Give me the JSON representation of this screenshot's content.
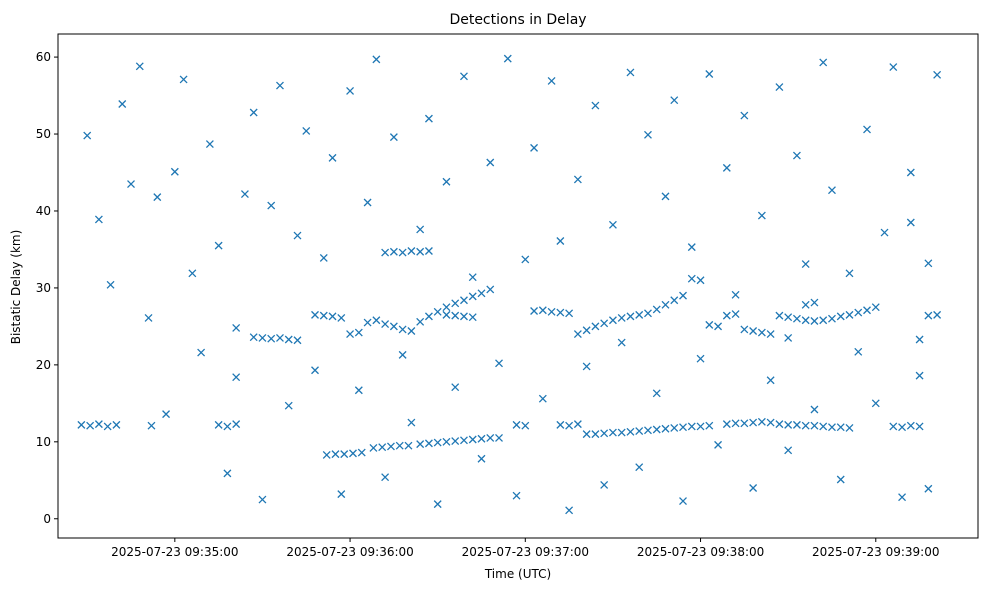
{
  "chart_data": {
    "type": "scatter",
    "title": "Detections in Delay",
    "xlabel": "Time (UTC)",
    "ylabel": "Bistatic Delay (km)",
    "x_unit": "time",
    "xlim": [
      "2025-07-23 09:34:20",
      "2025-07-23 09:39:35"
    ],
    "ylim": [
      -2.5,
      63
    ],
    "x_ticks": [
      "2025-07-23 09:35:00",
      "2025-07-23 09:36:00",
      "2025-07-23 09:37:00",
      "2025-07-23 09:38:00",
      "2025-07-23 09:39:00"
    ],
    "y_ticks": [
      "0",
      "10",
      "20",
      "30",
      "40",
      "50",
      "60"
    ],
    "marker": "x",
    "color": "#1f77b4",
    "grid": false,
    "series": [
      {
        "points": [
          [
            "2025-07-23 09:34:28",
            12.2
          ],
          [
            "2025-07-23 09:34:31",
            12.1
          ],
          [
            "2025-07-23 09:34:34",
            12.3
          ],
          [
            "2025-07-23 09:34:37",
            12.0
          ],
          [
            "2025-07-23 09:34:40",
            12.2
          ],
          [
            "2025-07-23 09:34:52",
            12.1
          ],
          [
            "2025-07-23 09:35:15",
            12.2
          ],
          [
            "2025-07-23 09:35:18",
            12.0
          ],
          [
            "2025-07-23 09:35:21",
            12.3
          ],
          [
            "2025-07-23 09:35:52",
            8.3
          ],
          [
            "2025-07-23 09:35:55",
            8.4
          ],
          [
            "2025-07-23 09:35:58",
            8.4
          ],
          [
            "2025-07-23 09:36:01",
            8.5
          ],
          [
            "2025-07-23 09:36:04",
            8.6
          ],
          [
            "2025-07-23 09:36:08",
            9.2
          ],
          [
            "2025-07-23 09:36:11",
            9.3
          ],
          [
            "2025-07-23 09:36:14",
            9.4
          ],
          [
            "2025-07-23 09:36:17",
            9.5
          ],
          [
            "2025-07-23 09:36:20",
            9.5
          ],
          [
            "2025-07-23 09:36:24",
            9.7
          ],
          [
            "2025-07-23 09:36:27",
            9.8
          ],
          [
            "2025-07-23 09:36:30",
            9.9
          ],
          [
            "2025-07-23 09:36:33",
            10.0
          ],
          [
            "2025-07-23 09:36:36",
            10.1
          ],
          [
            "2025-07-23 09:36:39",
            10.2
          ],
          [
            "2025-07-23 09:36:42",
            10.3
          ],
          [
            "2025-07-23 09:36:45",
            10.4
          ],
          [
            "2025-07-23 09:36:48",
            10.5
          ],
          [
            "2025-07-23 09:36:51",
            10.5
          ],
          [
            "2025-07-23 09:36:57",
            12.2
          ],
          [
            "2025-07-23 09:37:00",
            12.1
          ],
          [
            "2025-07-23 09:37:12",
            12.2
          ],
          [
            "2025-07-23 09:37:15",
            12.1
          ],
          [
            "2025-07-23 09:37:18",
            12.3
          ],
          [
            "2025-07-23 09:37:21",
            11.0
          ],
          [
            "2025-07-23 09:37:24",
            11.0
          ],
          [
            "2025-07-23 09:37:27",
            11.1
          ],
          [
            "2025-07-23 09:37:30",
            11.2
          ],
          [
            "2025-07-23 09:37:33",
            11.2
          ],
          [
            "2025-07-23 09:37:36",
            11.3
          ],
          [
            "2025-07-23 09:37:39",
            11.4
          ],
          [
            "2025-07-23 09:37:42",
            11.5
          ],
          [
            "2025-07-23 09:37:45",
            11.6
          ],
          [
            "2025-07-23 09:37:48",
            11.7
          ],
          [
            "2025-07-23 09:37:51",
            11.8
          ],
          [
            "2025-07-23 09:37:54",
            11.9
          ],
          [
            "2025-07-23 09:37:57",
            12.0
          ],
          [
            "2025-07-23 09:38:00",
            12.0
          ],
          [
            "2025-07-23 09:38:03",
            12.1
          ],
          [
            "2025-07-23 09:38:09",
            12.3
          ],
          [
            "2025-07-23 09:38:12",
            12.4
          ],
          [
            "2025-07-23 09:38:15",
            12.4
          ],
          [
            "2025-07-23 09:38:18",
            12.5
          ],
          [
            "2025-07-23 09:38:21",
            12.6
          ],
          [
            "2025-07-23 09:38:24",
            12.5
          ],
          [
            "2025-07-23 09:38:27",
            12.3
          ],
          [
            "2025-07-23 09:38:30",
            12.2
          ],
          [
            "2025-07-23 09:38:33",
            12.2
          ],
          [
            "2025-07-23 09:38:36",
            12.1
          ],
          [
            "2025-07-23 09:38:39",
            12.1
          ],
          [
            "2025-07-23 09:38:42",
            12.0
          ],
          [
            "2025-07-23 09:38:45",
            11.9
          ],
          [
            "2025-07-23 09:38:48",
            11.9
          ],
          [
            "2025-07-23 09:38:51",
            11.8
          ],
          [
            "2025-07-23 09:39:06",
            12.0
          ],
          [
            "2025-07-23 09:39:09",
            11.9
          ],
          [
            "2025-07-23 09:39:12",
            12.1
          ],
          [
            "2025-07-23 09:39:15",
            12.0
          ],
          [
            "2025-07-23 09:35:21",
            24.8
          ],
          [
            "2025-07-23 09:35:27",
            23.6
          ],
          [
            "2025-07-23 09:35:30",
            23.5
          ],
          [
            "2025-07-23 09:35:33",
            23.4
          ],
          [
            "2025-07-23 09:35:36",
            23.5
          ],
          [
            "2025-07-23 09:35:39",
            23.3
          ],
          [
            "2025-07-23 09:35:42",
            23.2
          ],
          [
            "2025-07-23 09:35:48",
            26.5
          ],
          [
            "2025-07-23 09:35:51",
            26.4
          ],
          [
            "2025-07-23 09:35:54",
            26.3
          ],
          [
            "2025-07-23 09:35:57",
            26.1
          ],
          [
            "2025-07-23 09:36:00",
            24.0
          ],
          [
            "2025-07-23 09:36:03",
            24.2
          ],
          [
            "2025-07-23 09:36:06",
            25.5
          ],
          [
            "2025-07-23 09:36:09",
            25.8
          ],
          [
            "2025-07-23 09:36:12",
            25.3
          ],
          [
            "2025-07-23 09:36:15",
            25.0
          ],
          [
            "2025-07-23 09:36:18",
            24.6
          ],
          [
            "2025-07-23 09:36:21",
            24.4
          ],
          [
            "2025-07-23 09:36:24",
            25.6
          ],
          [
            "2025-07-23 09:36:27",
            26.3
          ],
          [
            "2025-07-23 09:36:30",
            26.9
          ],
          [
            "2025-07-23 09:36:33",
            27.5
          ],
          [
            "2025-07-23 09:36:36",
            28.0
          ],
          [
            "2025-07-23 09:36:39",
            28.4
          ],
          [
            "2025-07-23 09:36:42",
            28.9
          ],
          [
            "2025-07-23 09:36:45",
            29.3
          ],
          [
            "2025-07-23 09:36:48",
            29.8
          ],
          [
            "2025-07-23 09:36:12",
            34.6
          ],
          [
            "2025-07-23 09:36:15",
            34.7
          ],
          [
            "2025-07-23 09:36:18",
            34.6
          ],
          [
            "2025-07-23 09:36:21",
            34.8
          ],
          [
            "2025-07-23 09:36:24",
            34.7
          ],
          [
            "2025-07-23 09:36:27",
            34.8
          ],
          [
            "2025-07-23 09:36:33",
            26.5
          ],
          [
            "2025-07-23 09:36:36",
            26.4
          ],
          [
            "2025-07-23 09:36:39",
            26.3
          ],
          [
            "2025-07-23 09:36:42",
            26.2
          ],
          [
            "2025-07-23 09:37:03",
            27.0
          ],
          [
            "2025-07-23 09:37:06",
            27.1
          ],
          [
            "2025-07-23 09:37:09",
            26.9
          ],
          [
            "2025-07-23 09:37:12",
            26.8
          ],
          [
            "2025-07-23 09:37:15",
            26.7
          ],
          [
            "2025-07-23 09:37:18",
            24.0
          ],
          [
            "2025-07-23 09:37:21",
            24.5
          ],
          [
            "2025-07-23 09:37:24",
            25.0
          ],
          [
            "2025-07-23 09:37:27",
            25.4
          ],
          [
            "2025-07-23 09:37:30",
            25.8
          ],
          [
            "2025-07-23 09:37:33",
            26.1
          ],
          [
            "2025-07-23 09:37:36",
            26.3
          ],
          [
            "2025-07-23 09:37:39",
            26.5
          ],
          [
            "2025-07-23 09:37:42",
            26.7
          ],
          [
            "2025-07-23 09:37:45",
            27.2
          ],
          [
            "2025-07-23 09:37:48",
            27.8
          ],
          [
            "2025-07-23 09:37:51",
            28.4
          ],
          [
            "2025-07-23 09:37:54",
            29.0
          ],
          [
            "2025-07-23 09:37:57",
            31.2
          ],
          [
            "2025-07-23 09:38:00",
            31.0
          ],
          [
            "2025-07-23 09:38:03",
            25.2
          ],
          [
            "2025-07-23 09:38:06",
            25.0
          ],
          [
            "2025-07-23 09:38:09",
            26.4
          ],
          [
            "2025-07-23 09:38:12",
            26.6
          ],
          [
            "2025-07-23 09:38:15",
            24.6
          ],
          [
            "2025-07-23 09:38:18",
            24.4
          ],
          [
            "2025-07-23 09:38:21",
            24.2
          ],
          [
            "2025-07-23 09:38:24",
            24.0
          ],
          [
            "2025-07-23 09:38:27",
            26.4
          ],
          [
            "2025-07-23 09:38:30",
            26.2
          ],
          [
            "2025-07-23 09:38:33",
            26.0
          ],
          [
            "2025-07-23 09:38:36",
            25.8
          ],
          [
            "2025-07-23 09:38:39",
            25.7
          ],
          [
            "2025-07-23 09:38:42",
            25.8
          ],
          [
            "2025-07-23 09:38:45",
            26.0
          ],
          [
            "2025-07-23 09:38:48",
            26.3
          ],
          [
            "2025-07-23 09:38:51",
            26.5
          ],
          [
            "2025-07-23 09:38:54",
            26.8
          ],
          [
            "2025-07-23 09:38:57",
            27.1
          ],
          [
            "2025-07-23 09:39:00",
            27.5
          ],
          [
            "2025-07-23 09:38:36",
            27.8
          ],
          [
            "2025-07-23 09:38:39",
            28.1
          ],
          [
            "2025-07-23 09:38:30",
            23.5
          ],
          [
            "2025-07-23 09:39:18",
            26.4
          ],
          [
            "2025-07-23 09:39:21",
            26.5
          ],
          [
            "2025-07-23 09:34:30",
            49.8
          ],
          [
            "2025-07-23 09:34:34",
            38.9
          ],
          [
            "2025-07-23 09:34:38",
            30.4
          ],
          [
            "2025-07-23 09:34:42",
            53.9
          ],
          [
            "2025-07-23 09:34:45",
            43.5
          ],
          [
            "2025-07-23 09:34:48",
            58.8
          ],
          [
            "2025-07-23 09:34:51",
            26.1
          ],
          [
            "2025-07-23 09:34:54",
            41.8
          ],
          [
            "2025-07-23 09:34:57",
            13.6
          ],
          [
            "2025-07-23 09:35:00",
            45.1
          ],
          [
            "2025-07-23 09:35:03",
            57.1
          ],
          [
            "2025-07-23 09:35:06",
            31.9
          ],
          [
            "2025-07-23 09:35:09",
            21.6
          ],
          [
            "2025-07-23 09:35:12",
            48.7
          ],
          [
            "2025-07-23 09:35:15",
            35.5
          ],
          [
            "2025-07-23 09:35:18",
            5.9
          ],
          [
            "2025-07-23 09:35:21",
            18.4
          ],
          [
            "2025-07-23 09:35:24",
            42.2
          ],
          [
            "2025-07-23 09:35:27",
            52.8
          ],
          [
            "2025-07-23 09:35:30",
            2.5
          ],
          [
            "2025-07-23 09:35:33",
            40.7
          ],
          [
            "2025-07-23 09:35:36",
            56.3
          ],
          [
            "2025-07-23 09:35:39",
            14.7
          ],
          [
            "2025-07-23 09:35:42",
            36.8
          ],
          [
            "2025-07-23 09:35:45",
            50.4
          ],
          [
            "2025-07-23 09:35:48",
            19.3
          ],
          [
            "2025-07-23 09:35:51",
            33.9
          ],
          [
            "2025-07-23 09:35:54",
            46.9
          ],
          [
            "2025-07-23 09:35:57",
            3.2
          ],
          [
            "2025-07-23 09:36:00",
            55.6
          ],
          [
            "2025-07-23 09:36:03",
            16.7
          ],
          [
            "2025-07-23 09:36:06",
            41.1
          ],
          [
            "2025-07-23 09:36:09",
            59.7
          ],
          [
            "2025-07-23 09:36:12",
            5.4
          ],
          [
            "2025-07-23 09:36:15",
            49.6
          ],
          [
            "2025-07-23 09:36:18",
            21.3
          ],
          [
            "2025-07-23 09:36:21",
            12.5
          ],
          [
            "2025-07-23 09:36:24",
            37.6
          ],
          [
            "2025-07-23 09:36:27",
            52.0
          ],
          [
            "2025-07-23 09:36:30",
            1.9
          ],
          [
            "2025-07-23 09:36:33",
            43.8
          ],
          [
            "2025-07-23 09:36:36",
            17.1
          ],
          [
            "2025-07-23 09:36:39",
            57.5
          ],
          [
            "2025-07-23 09:36:42",
            31.4
          ],
          [
            "2025-07-23 09:36:45",
            7.8
          ],
          [
            "2025-07-23 09:36:48",
            46.3
          ],
          [
            "2025-07-23 09:36:51",
            20.2
          ],
          [
            "2025-07-23 09:36:54",
            59.8
          ],
          [
            "2025-07-23 09:36:57",
            3.0
          ],
          [
            "2025-07-23 09:37:00",
            33.7
          ],
          [
            "2025-07-23 09:37:03",
            48.2
          ],
          [
            "2025-07-23 09:37:06",
            15.6
          ],
          [
            "2025-07-23 09:37:09",
            56.9
          ],
          [
            "2025-07-23 09:37:12",
            36.1
          ],
          [
            "2025-07-23 09:37:15",
            1.1
          ],
          [
            "2025-07-23 09:37:18",
            44.1
          ],
          [
            "2025-07-23 09:37:21",
            19.8
          ],
          [
            "2025-07-23 09:37:24",
            53.7
          ],
          [
            "2025-07-23 09:37:27",
            4.4
          ],
          [
            "2025-07-23 09:37:30",
            38.2
          ],
          [
            "2025-07-23 09:37:33",
            22.9
          ],
          [
            "2025-07-23 09:37:36",
            58.0
          ],
          [
            "2025-07-23 09:37:39",
            6.7
          ],
          [
            "2025-07-23 09:37:42",
            49.9
          ],
          [
            "2025-07-23 09:37:45",
            16.3
          ],
          [
            "2025-07-23 09:37:48",
            41.9
          ],
          [
            "2025-07-23 09:37:51",
            54.4
          ],
          [
            "2025-07-23 09:37:54",
            2.3
          ],
          [
            "2025-07-23 09:37:57",
            35.3
          ],
          [
            "2025-07-23 09:38:00",
            20.8
          ],
          [
            "2025-07-23 09:38:03",
            57.8
          ],
          [
            "2025-07-23 09:38:06",
            9.6
          ],
          [
            "2025-07-23 09:38:09",
            45.6
          ],
          [
            "2025-07-23 09:38:12",
            29.1
          ],
          [
            "2025-07-23 09:38:15",
            52.4
          ],
          [
            "2025-07-23 09:38:18",
            4.0
          ],
          [
            "2025-07-23 09:38:21",
            39.4
          ],
          [
            "2025-07-23 09:38:24",
            18.0
          ],
          [
            "2025-07-23 09:38:27",
            56.1
          ],
          [
            "2025-07-23 09:38:30",
            8.9
          ],
          [
            "2025-07-23 09:38:33",
            47.2
          ],
          [
            "2025-07-23 09:38:36",
            33.1
          ],
          [
            "2025-07-23 09:38:39",
            14.2
          ],
          [
            "2025-07-23 09:38:42",
            59.3
          ],
          [
            "2025-07-23 09:38:45",
            42.7
          ],
          [
            "2025-07-23 09:38:48",
            5.1
          ],
          [
            "2025-07-23 09:38:51",
            31.9
          ],
          [
            "2025-07-23 09:38:54",
            21.7
          ],
          [
            "2025-07-23 09:38:57",
            50.6
          ],
          [
            "2025-07-23 09:39:00",
            15.0
          ],
          [
            "2025-07-23 09:39:03",
            37.2
          ],
          [
            "2025-07-23 09:39:06",
            58.7
          ],
          [
            "2025-07-23 09:39:09",
            2.8
          ],
          [
            "2025-07-23 09:39:12",
            45.0
          ],
          [
            "2025-07-23 09:39:15",
            23.3
          ],
          [
            "2025-07-23 09:39:18",
            33.2
          ],
          [
            "2025-07-23 09:39:21",
            57.7
          ],
          [
            "2025-07-23 09:39:18",
            3.9
          ],
          [
            "2025-07-23 09:39:15",
            18.6
          ],
          [
            "2025-07-23 09:39:12",
            38.5
          ]
        ]
      }
    ]
  }
}
